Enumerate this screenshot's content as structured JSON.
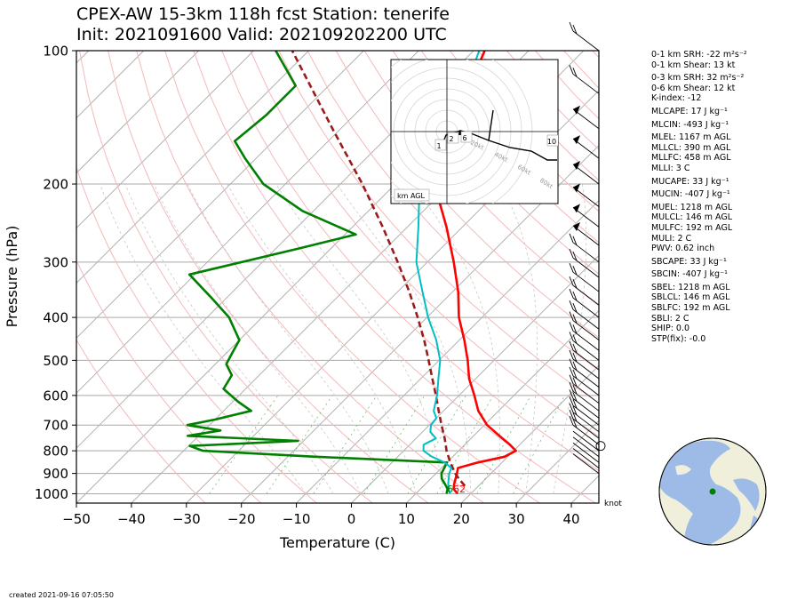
{
  "header": {
    "title_line1": "CPEX-AW 15-3km  118h fcst  Station: tenerife",
    "title_line2": "Init: 2021091600  Valid: 202109202200 UTC"
  },
  "chart_data": {
    "type": "skewt",
    "xlabel": "Temperature (C)",
    "ylabel": "Pressure (hPa)",
    "xlim": [
      -50,
      45
    ],
    "ylim": [
      1050,
      100
    ],
    "x_ticks": [
      -50,
      -40,
      -30,
      -20,
      -10,
      0,
      10,
      20,
      30,
      40
    ],
    "x_tick_labels": [
      "−50",
      "−40",
      "−30",
      "−20",
      "−10",
      "0",
      "10",
      "20",
      "30",
      "40"
    ],
    "y_ticks": [
      100,
      200,
      300,
      400,
      500,
      600,
      700,
      800,
      900,
      1000
    ],
    "y_tick_labels": [
      "100",
      "200",
      "300",
      "400",
      "500",
      "600",
      "700",
      "800",
      "900",
      "1000"
    ],
    "knot_label": "knot",
    "surface_labels": {
      "dewpoint": "6",
      "temperature": "62"
    },
    "series": [
      {
        "key": "temperature",
        "color": "#ff0000",
        "points": [
          [
            1000,
            17.6
          ],
          [
            975,
            16.0
          ],
          [
            950,
            15.2
          ],
          [
            925,
            14.5
          ],
          [
            900,
            13.8
          ],
          [
            875,
            13.0
          ],
          [
            850,
            15.6
          ],
          [
            825,
            19.4
          ],
          [
            800,
            20.4
          ],
          [
            775,
            18.2
          ],
          [
            750,
            15.7
          ],
          [
            700,
            10.5
          ],
          [
            650,
            6.3
          ],
          [
            600,
            2.8
          ],
          [
            550,
            -1.2
          ],
          [
            500,
            -4.8
          ],
          [
            450,
            -9.1
          ],
          [
            400,
            -14.2
          ],
          [
            350,
            -19.0
          ],
          [
            300,
            -25.2
          ],
          [
            250,
            -32.9
          ],
          [
            200,
            -42.9
          ],
          [
            175,
            -48.8
          ],
          [
            150,
            -52.4
          ],
          [
            125,
            -53.5
          ],
          [
            100,
            -58.0
          ]
        ]
      },
      {
        "key": "dewpoint",
        "color": "#008000",
        "points": [
          [
            1000,
            15.6
          ],
          [
            975,
            14.9
          ],
          [
            950,
            13.5
          ],
          [
            925,
            12.0
          ],
          [
            900,
            11.0
          ],
          [
            850,
            10.0
          ],
          [
            825,
            -15.0
          ],
          [
            800,
            -36.5
          ],
          [
            780,
            -39.8
          ],
          [
            760,
            -21.0
          ],
          [
            740,
            -42.0
          ],
          [
            720,
            -37.0
          ],
          [
            700,
            -44.0
          ],
          [
            680,
            -40.0
          ],
          [
            650,
            -35.0
          ],
          [
            620,
            -39.0
          ],
          [
            580,
            -44.0
          ],
          [
            540,
            -45.0
          ],
          [
            510,
            -48.0
          ],
          [
            480,
            -49.0
          ],
          [
            450,
            -50.0
          ],
          [
            400,
            -56.0
          ],
          [
            360,
            -63.0
          ],
          [
            320,
            -71.0
          ],
          [
            280,
            -56.0
          ],
          [
            260,
            -48.0
          ],
          [
            230,
            -62.0
          ],
          [
            200,
            -74.0
          ],
          [
            175,
            -82.0
          ],
          [
            160,
            -87.0
          ],
          [
            140,
            -86.0
          ],
          [
            120,
            -86.0
          ],
          [
            100,
            -96.0
          ]
        ]
      },
      {
        "key": "parcel",
        "color": "#9b1c1c",
        "dashed": true,
        "points": [
          [
            960,
            17.5
          ],
          [
            925,
            15.1
          ],
          [
            900,
            13.5
          ],
          [
            850,
            10.6
          ],
          [
            800,
            7.8
          ],
          [
            750,
            5.2
          ],
          [
            700,
            2.2
          ],
          [
            650,
            -0.9
          ],
          [
            600,
            -4.2
          ],
          [
            550,
            -7.9
          ],
          [
            500,
            -11.9
          ],
          [
            450,
            -16.4
          ],
          [
            400,
            -21.7
          ],
          [
            350,
            -27.9
          ],
          [
            300,
            -35.4
          ],
          [
            250,
            -44.5
          ],
          [
            200,
            -56.0
          ],
          [
            150,
            -71.5
          ],
          [
            100,
            -93.0
          ]
        ]
      },
      {
        "key": "wetbulb",
        "color": "#00bfc4",
        "points": [
          [
            1000,
            16.2
          ],
          [
            950,
            14.1
          ],
          [
            900,
            12.4
          ],
          [
            875,
            11.8
          ],
          [
            850,
            9.6
          ],
          [
            825,
            6.2
          ],
          [
            800,
            3.6
          ],
          [
            775,
            2.5
          ],
          [
            750,
            3.6
          ],
          [
            725,
            1.4
          ],
          [
            700,
            0.3
          ],
          [
            675,
            0.0
          ],
          [
            650,
            -1.8
          ],
          [
            600,
            -4.0
          ],
          [
            550,
            -6.8
          ],
          [
            500,
            -9.8
          ],
          [
            450,
            -14.2
          ],
          [
            400,
            -19.8
          ],
          [
            350,
            -25.5
          ],
          [
            300,
            -32.0
          ],
          [
            250,
            -38.0
          ],
          [
            200,
            -45.6
          ],
          [
            175,
            -51.7
          ],
          [
            150,
            -55.0
          ],
          [
            125,
            -54.0
          ],
          [
            100,
            -59.0
          ]
        ]
      }
    ],
    "hodograph": {
      "ring_labels": [
        "20kt",
        "40kt",
        "60kt",
        "80kt"
      ],
      "height_labels": [
        "1",
        "2",
        "6",
        "10"
      ],
      "km_label": "km AGL"
    }
  },
  "stats": [
    {
      "text": "0-1 km SRH: -22 m²s⁻²",
      "gap": false
    },
    {
      "text": "0-1 km Shear: 13 kt",
      "gap": false
    },
    {
      "text": "0-3 km SRH: 32 m²s⁻²",
      "gap": true
    },
    {
      "text": "0-6 km Shear: 12 kt",
      "gap": false
    },
    {
      "text": "K-index: -12",
      "gap": false
    },
    {
      "text": "MLCAPE: 17 J kg⁻¹",
      "gap": true
    },
    {
      "text": "MLCIN: -493 J kg⁻¹",
      "gap": true
    },
    {
      "text": "MLEL: 1167 m AGL",
      "gap": true
    },
    {
      "text": "MLLCL: 390 m AGL",
      "gap": false
    },
    {
      "text": "MLLFC: 458 m AGL",
      "gap": false
    },
    {
      "text": "MLLI: 3 C",
      "gap": false
    },
    {
      "text": "MUCAPE: 33 J kg⁻¹",
      "gap": true
    },
    {
      "text": "MUCIN: -407 J kg⁻¹",
      "gap": true
    },
    {
      "text": "MUEL: 1218 m AGL",
      "gap": true
    },
    {
      "text": "MULCL: 146 m AGL",
      "gap": false
    },
    {
      "text": "MULFC: 192 m AGL",
      "gap": false
    },
    {
      "text": "MULI: 2 C",
      "gap": false
    },
    {
      "text": "PWV: 0.62 inch",
      "gap": false
    },
    {
      "text": "SBCAPE: 33 J kg⁻¹",
      "gap": true
    },
    {
      "text": "SBCIN: -407 J kg⁻¹",
      "gap": true
    },
    {
      "text": "SBEL: 1218 m AGL",
      "gap": true
    },
    {
      "text": "SBLCL: 146 m AGL",
      "gap": false
    },
    {
      "text": "SBLFC: 192 m AGL",
      "gap": false
    },
    {
      "text": "SBLI: 2 C",
      "gap": false
    },
    {
      "text": "SHIP: 0.0",
      "gap": false
    },
    {
      "text": "STP(fix): -0.0",
      "gap": false
    }
  ],
  "footer": {
    "created": "created 2021-09-16 07:05:50"
  },
  "colors": {
    "temperature": "#ff0000",
    "dewpoint": "#008000",
    "parcel": "#9b1c1c",
    "wetbulb": "#00bfc4",
    "ocean": "#9dbbe6",
    "land": "#f0efdc",
    "station": "#008000"
  }
}
